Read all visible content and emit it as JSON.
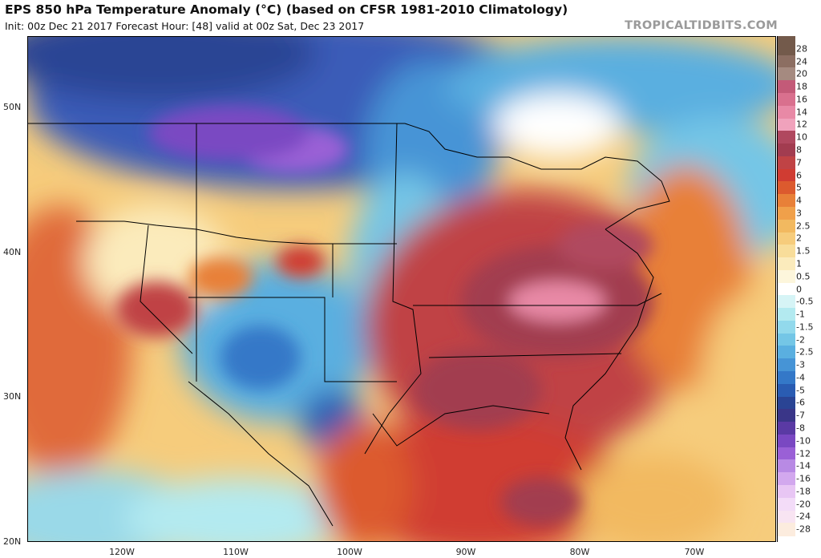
{
  "header": {
    "title": "EPS 850 hPa Temperature Anomaly (°C) (based on CFSR 1981-2010 Climatology)",
    "subtitle": "Init: 00z Dec 21 2017   Forecast Hour: [48]   valid at 00z Sat, Dec 23 2017",
    "brand": "TROPICALTIDBITS.COM"
  },
  "axes": {
    "lat_labels": [
      "50N",
      "40N",
      "30N",
      "20N"
    ],
    "lon_labels": [
      "120W",
      "110W",
      "100W",
      "90W",
      "80W",
      "70W"
    ]
  },
  "colorbar": {
    "labels": [
      "28",
      "24",
      "20",
      "18",
      "16",
      "14",
      "12",
      "10",
      "8",
      "7",
      "6",
      "5",
      "4",
      "3",
      "2.5",
      "2",
      "1.5",
      "1",
      "0.5",
      "0",
      "-0.5",
      "-1",
      "-1.5",
      "-2",
      "-2.5",
      "-3",
      "-4",
      "-5",
      "-6",
      "-7",
      "-8",
      "-10",
      "-12",
      "-14",
      "-16",
      "-18",
      "-20",
      "-24",
      "-28"
    ],
    "colors": [
      "#735a4b",
      "#8c6e62",
      "#a58a80",
      "#c35a78",
      "#d9708e",
      "#e889a6",
      "#f0a2bc",
      "#b0485f",
      "#a23c50",
      "#c04345",
      "#d03c32",
      "#dc5a2e",
      "#e88038",
      "#f0a04a",
      "#f2b960",
      "#f6cc7c",
      "#f8dd9a",
      "#fbebbc",
      "#fdf6dc",
      "#ffffff",
      "#d6f4f6",
      "#b3eaf0",
      "#92d9ec",
      "#74c6e6",
      "#5aafe0",
      "#4694d6",
      "#3478c8",
      "#2a5cb2",
      "#2a4494",
      "#3a3688",
      "#5a3aa4",
      "#7a48c2",
      "#9a60d6",
      "#b88ae4",
      "#d2a8ee",
      "#e8c6f4",
      "#f3dcf8",
      "#f8e4f2",
      "#fcecde"
    ]
  }
}
